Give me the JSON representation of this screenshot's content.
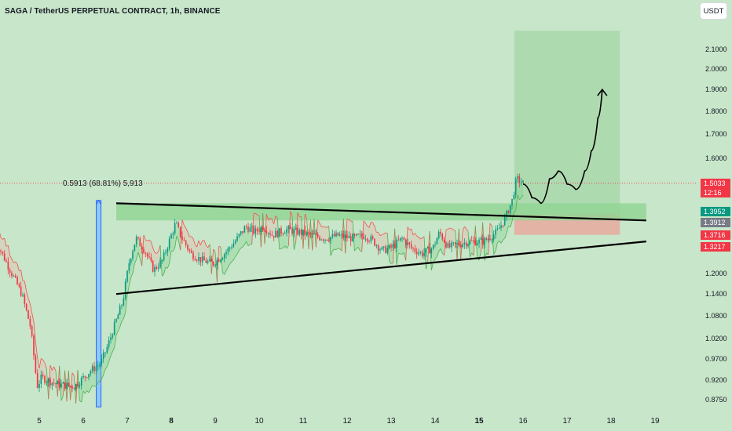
{
  "header": {
    "title": "SAGA / TetherUS PERPETUAL CONTRACT, 1h, BINANCE",
    "currency_button": "USDT"
  },
  "measurement_label": "0.5913 (68.81%) 5,913",
  "price_tags": [
    {
      "value": "1.5033",
      "color": "#f23645",
      "sub": "12:16"
    },
    {
      "value": "1.3952",
      "color": "#089981"
    },
    {
      "value": "1.3912",
      "color": "#787b86"
    },
    {
      "value": "1.3716",
      "color": "#f23645"
    },
    {
      "value": "1.3217",
      "color": "#f23645"
    }
  ],
  "colors": {
    "background": "#c8e6c9",
    "up": "#089981",
    "down": "#f23645",
    "trendline": "#000000",
    "target_zone": "#a5d6a7",
    "stop_zone": "#e8a9a0",
    "resistance_band": "#90d494",
    "measure_bar": "#2962ff"
  },
  "chart_data": {
    "type": "candlestick",
    "symbol": "SAGA / TetherUS PERPETUAL CONTRACT",
    "interval": "1h",
    "exchange": "BINANCE",
    "y_scale": "log",
    "ylim": [
      0.86,
      2.25
    ],
    "y_ticks": [
      "2.1000",
      "2.0000",
      "1.9000",
      "1.8000",
      "1.7000",
      "1.6000",
      "1.2000",
      "1.1400",
      "1.0800",
      "1.0200",
      "0.9700",
      "0.9200",
      "0.8750"
    ],
    "x_ticks": [
      {
        "label": "5",
        "bold": false
      },
      {
        "label": "6",
        "bold": false
      },
      {
        "label": "7",
        "bold": false
      },
      {
        "label": "8",
        "bold": true
      },
      {
        "label": "9",
        "bold": false
      },
      {
        "label": "10",
        "bold": false
      },
      {
        "label": "11",
        "bold": false
      },
      {
        "label": "12",
        "bold": false
      },
      {
        "label": "13",
        "bold": false
      },
      {
        "label": "14",
        "bold": false
      },
      {
        "label": "15",
        "bold": true
      },
      {
        "label": "16",
        "bold": false
      },
      {
        "label": "17",
        "bold": false
      },
      {
        "label": "18",
        "bold": false
      },
      {
        "label": "19",
        "bold": false
      }
    ],
    "price_path": [
      [
        4.0,
        1.305
      ],
      [
        4.3,
        1.22
      ],
      [
        4.6,
        1.14
      ],
      [
        4.8,
        1.05
      ],
      [
        4.95,
        0.905
      ],
      [
        5.05,
        0.925
      ],
      [
        5.4,
        0.91
      ],
      [
        5.8,
        0.905
      ],
      [
        6.15,
        0.94
      ],
      [
        6.4,
        0.96
      ],
      [
        6.55,
        1.0
      ],
      [
        6.7,
        1.05
      ],
      [
        6.9,
        1.12
      ],
      [
        7.05,
        1.24
      ],
      [
        7.2,
        1.31
      ],
      [
        7.4,
        1.27
      ],
      [
        7.6,
        1.21
      ],
      [
        7.8,
        1.24
      ],
      [
        7.95,
        1.3
      ],
      [
        8.1,
        1.36
      ],
      [
        8.25,
        1.31
      ],
      [
        8.45,
        1.26
      ],
      [
        8.7,
        1.24
      ],
      [
        8.95,
        1.23
      ],
      [
        9.2,
        1.26
      ],
      [
        9.45,
        1.3
      ],
      [
        9.7,
        1.35
      ],
      [
        9.9,
        1.33
      ],
      [
        10.1,
        1.35
      ],
      [
        10.3,
        1.32
      ],
      [
        10.6,
        1.34
      ],
      [
        10.9,
        1.33
      ],
      [
        11.2,
        1.32
      ],
      [
        11.5,
        1.31
      ],
      [
        11.8,
        1.32
      ],
      [
        12.1,
        1.31
      ],
      [
        12.4,
        1.32
      ],
      [
        12.6,
        1.3
      ],
      [
        12.8,
        1.27
      ],
      [
        13.0,
        1.28
      ],
      [
        13.25,
        1.31
      ],
      [
        13.45,
        1.28
      ],
      [
        13.7,
        1.26
      ],
      [
        13.95,
        1.28
      ],
      [
        14.1,
        1.33
      ],
      [
        14.3,
        1.28
      ],
      [
        14.5,
        1.29
      ],
      [
        14.8,
        1.3
      ],
      [
        15.1,
        1.3
      ],
      [
        15.4,
        1.33
      ],
      [
        15.6,
        1.38
      ],
      [
        15.75,
        1.44
      ],
      [
        15.85,
        1.52
      ],
      [
        16.0,
        1.5033
      ]
    ],
    "projection_path": [
      [
        16.0,
        1.5
      ],
      [
        16.2,
        1.45
      ],
      [
        16.4,
        1.43
      ],
      [
        16.6,
        1.52
      ],
      [
        16.8,
        1.55
      ],
      [
        17.0,
        1.5
      ],
      [
        17.2,
        1.48
      ],
      [
        17.4,
        1.55
      ],
      [
        17.55,
        1.63
      ],
      [
        17.7,
        1.77
      ],
      [
        17.8,
        1.9
      ]
    ],
    "trendlines": [
      {
        "name": "upper",
        "from": [
          6.75,
          1.43
        ],
        "to": [
          18.8,
          1.37
        ]
      },
      {
        "name": "lower",
        "from": [
          6.75,
          1.14
        ],
        "to": [
          18.8,
          1.3
        ]
      }
    ],
    "resistance_band": {
      "x_from": 6.75,
      "x_to": 18.8,
      "y_low": 1.37,
      "y_high": 1.43
    },
    "position": {
      "x_from": 15.8,
      "x_to": 18.2,
      "entry": 1.3912,
      "target": 2.2,
      "stop": 1.3217
    },
    "measurement": {
      "x": 6.35,
      "y_from": 0.86,
      "y_to": 1.44,
      "label": "0.5913 (68.81%) 5,913"
    },
    "last_price": 1.5033,
    "countdown": "12:16"
  }
}
